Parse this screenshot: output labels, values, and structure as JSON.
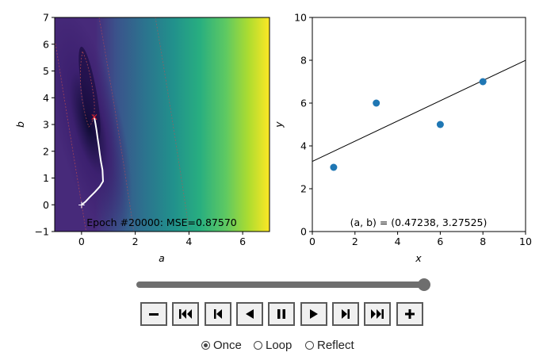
{
  "chart_data": [
    {
      "type": "heatmap",
      "title": "",
      "xlabel": "a",
      "ylabel": "b",
      "xlim": [
        -1,
        7
      ],
      "ylim": [
        -1,
        7
      ],
      "xticks": [
        "0",
        "2",
        "4",
        "6"
      ],
      "yticks": [
        "−1",
        "0",
        "1",
        "2",
        "3",
        "4",
        "5",
        "6",
        "7"
      ],
      "colormap": "viridis",
      "annotation": "Epoch #20000: MSE=0.87570",
      "path_start": [
        0,
        0
      ],
      "path_end": [
        0.47238,
        3.27525
      ],
      "path": [
        [
          0,
          0
        ],
        [
          0.15,
          0.12
        ],
        [
          0.3,
          0.28
        ],
        [
          0.5,
          0.48
        ],
        [
          0.68,
          0.68
        ],
        [
          0.8,
          0.88
        ],
        [
          0.78,
          1.3
        ],
        [
          0.72,
          1.62
        ],
        [
          0.68,
          1.9
        ],
        [
          0.64,
          2.2
        ],
        [
          0.6,
          2.48
        ],
        [
          0.56,
          2.78
        ],
        [
          0.52,
          3.02
        ],
        [
          0.49,
          3.18
        ],
        [
          0.47238,
          3.27525
        ]
      ]
    },
    {
      "type": "scatter",
      "title": "",
      "xlabel": "x",
      "ylabel": "y",
      "xlim": [
        0,
        10
      ],
      "ylim": [
        0,
        10
      ],
      "xticks": [
        "0",
        "2",
        "4",
        "6",
        "8",
        "10"
      ],
      "yticks": [
        "0",
        "2",
        "4",
        "6",
        "8",
        "10"
      ],
      "points": {
        "x": [
          1,
          3,
          6,
          8
        ],
        "y": [
          3,
          6,
          5,
          7
        ]
      },
      "fit_line": {
        "a": 0.47238,
        "b": 3.27525
      },
      "annotation": "(a, b) = (0.47238, 3.27525)",
      "point_color": "#1f77b4"
    }
  ],
  "controls": {
    "slider_value": 1.0,
    "buttons": [
      "decrease",
      "first",
      "step-back",
      "play-reverse",
      "pause",
      "play",
      "step-forward",
      "last",
      "increase"
    ],
    "loop_options": [
      "Once",
      "Loop",
      "Reflect"
    ],
    "selected_loop": "Once"
  }
}
